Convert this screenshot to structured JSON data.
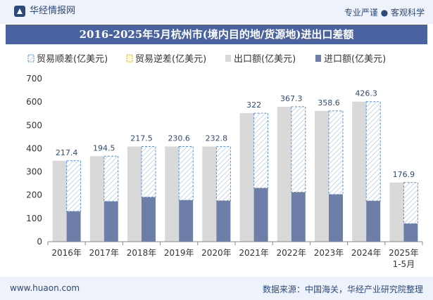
{
  "header": {
    "brand": "华经情报网",
    "slogan": "专业严谨 ● 客观科学"
  },
  "footer": {
    "site": "www.huaon.com",
    "source": "数据来源：中国海关，华经产业研究院整理"
  },
  "colors": {
    "export": "#d9d9d9",
    "import": "#6d7fa8",
    "surplus_stroke": "#5b8fd6",
    "deficit_stroke": "#e6b800",
    "title_bg": "#4a63a0"
  },
  "chart_data": {
    "type": "bar",
    "title": "2016-2025年5月杭州市(境内目的地/货源地)进出口差额",
    "categories": [
      "2016年",
      "2017年",
      "2018年",
      "2019年",
      "2020年",
      "2021年",
      "2022年",
      "2023年",
      "2024年",
      "2025年\n1-5月"
    ],
    "category_lines": [
      [
        "2016年"
      ],
      [
        "2017年"
      ],
      [
        "2018年"
      ],
      [
        "2019年"
      ],
      [
        "2020年"
      ],
      [
        "2021年"
      ],
      [
        "2022年"
      ],
      [
        "2023年"
      ],
      [
        "2024年"
      ],
      [
        "2025年",
        "1-5月"
      ]
    ],
    "legend": [
      "贸易顺差(亿美元)",
      "贸易逆差(亿美元)",
      "出口额(亿美元)",
      "进口额(亿美元)"
    ],
    "legend_position": "top-left",
    "series": [
      {
        "name": "出口额(亿美元)",
        "values": [
          347.6,
          367.3,
          408.8,
          408.8,
          408.6,
          551.9,
          579.5,
          561.4,
          601.3,
          254.2
        ]
      },
      {
        "name": "进口额(亿美元)",
        "values": [
          130.2,
          172.8,
          191.3,
          178.2,
          175.8,
          229.9,
          212.2,
          202.8,
          175.0,
          77.3
        ]
      },
      {
        "name": "贸易顺差(亿美元)",
        "values": [
          217.4,
          194.5,
          217.5,
          230.6,
          232.8,
          322,
          367.3,
          358.6,
          426.3,
          176.9
        ]
      }
    ],
    "surplus_labels": [
      "217.4",
      "194.5",
      "217.5",
      "230.6",
      "232.8",
      "322",
      "367.3",
      "358.6",
      "426.3",
      "176.9"
    ],
    "ylim": [
      0,
      700
    ],
    "yticks": [
      "0",
      "100",
      "200",
      "300",
      "400",
      "500",
      "600",
      "700"
    ],
    "grid": false
  }
}
